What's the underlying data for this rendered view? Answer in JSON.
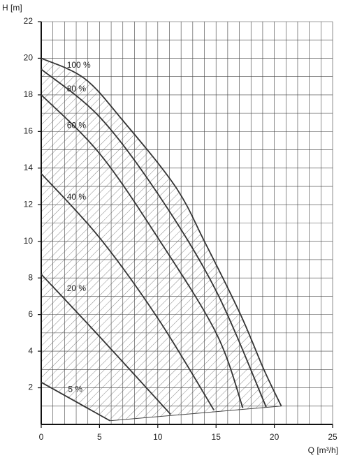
{
  "chart_data": {
    "type": "line",
    "y_label": "H [m]",
    "x_label": "Q [m³/h]",
    "xlim": [
      0,
      25
    ],
    "ylim": [
      0,
      22
    ],
    "xticks": [
      0,
      5,
      10,
      15,
      20,
      25
    ],
    "yticks": [
      2,
      4,
      6,
      8,
      10,
      12,
      14,
      16,
      18,
      20,
      22
    ],
    "grid": true,
    "color": "#333333",
    "series": [
      {
        "name": "100 %",
        "x": [
          0,
          3.7,
          7,
          11.5,
          14,
          17.1,
          19.1,
          20.6
        ],
        "values": [
          20,
          18.9,
          16.6,
          13,
          10,
          6,
          3,
          1
        ]
      },
      {
        "name": "80 %",
        "x": [
          0,
          5,
          10,
          15,
          19.3
        ],
        "values": [
          19.4,
          16.8,
          12.6,
          7.3,
          0.95
        ]
      },
      {
        "name": "60 %",
        "x": [
          0,
          5,
          10,
          15,
          17.3
        ],
        "values": [
          18,
          14.8,
          10.2,
          5,
          0.9
        ]
      },
      {
        "name": "40 %",
        "x": [
          0,
          5,
          10,
          14.8
        ],
        "values": [
          13.7,
          10.2,
          5.8,
          0.8
        ]
      },
      {
        "name": "20 %",
        "x": [
          0,
          5,
          11.1
        ],
        "values": [
          8.2,
          4.8,
          0.55
        ]
      },
      {
        "name": "5 %",
        "x": [
          0,
          5.9
        ],
        "values": [
          2.3,
          0.2
        ]
      }
    ],
    "boundary": {
      "x": [
        5.9,
        20.6
      ],
      "values": [
        0.2,
        1
      ]
    }
  }
}
